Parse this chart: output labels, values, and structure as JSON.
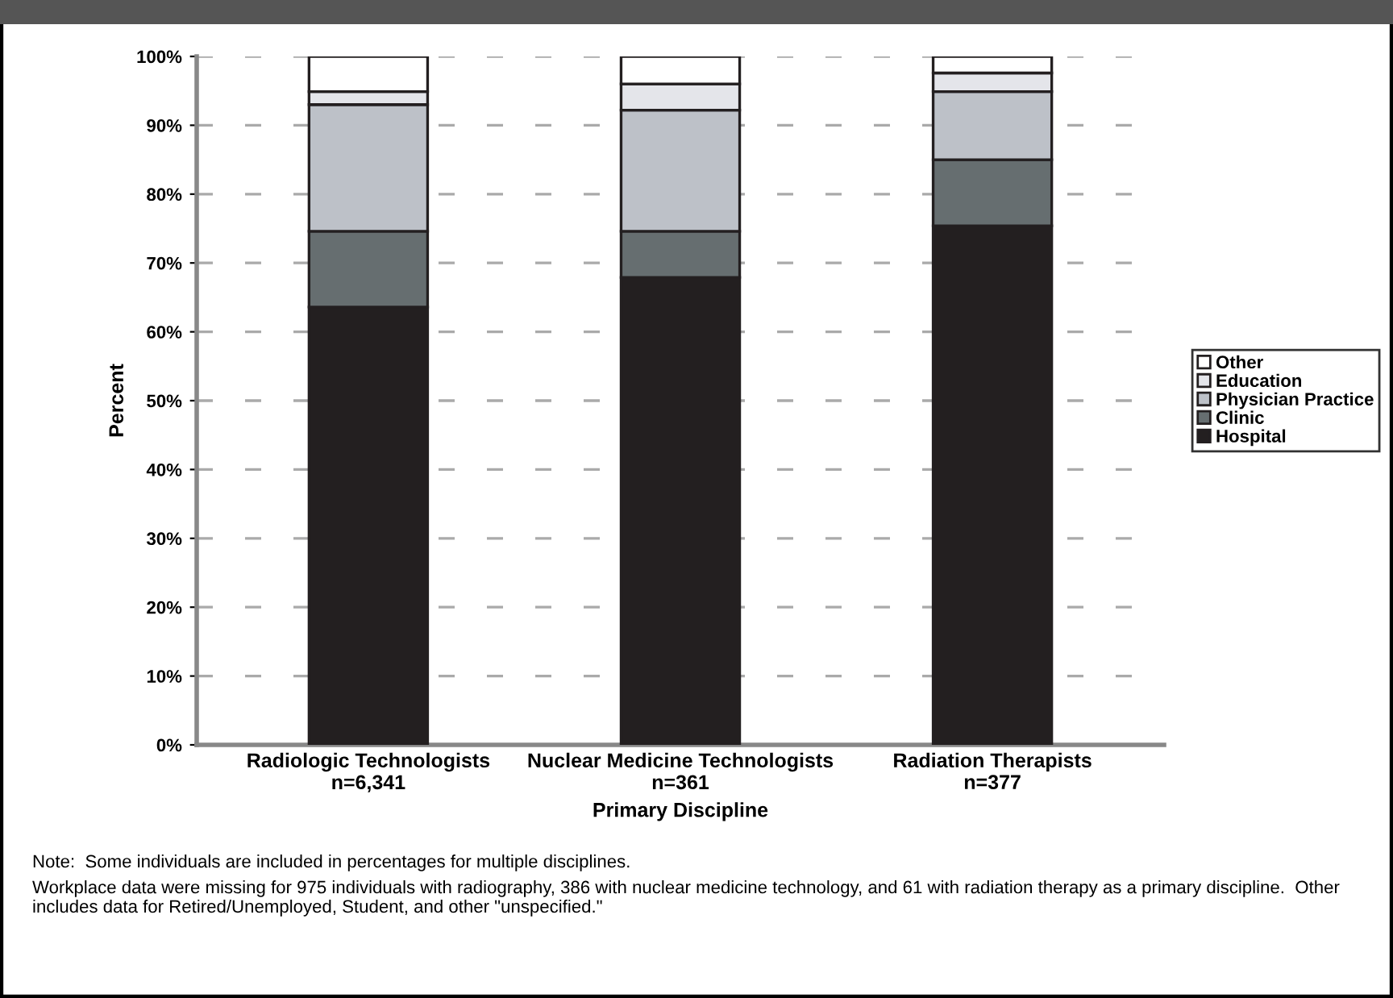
{
  "chart_data": {
    "type": "bar",
    "stacked": true,
    "xlabel": "Primary Discipline",
    "ylabel": "Percent",
    "categories": [
      "Radiologic Technologists\nn=6,341",
      "Nuclear Medicine Technologists\nn=361",
      "Radiation Therapists\nn=377"
    ],
    "series": [
      {
        "name": "Hospital",
        "color": "#231f20",
        "values": [
          63.6,
          67.9,
          75.4
        ]
      },
      {
        "name": "Clinic",
        "color": "#666e70",
        "values": [
          11.0,
          6.7,
          9.6
        ]
      },
      {
        "name": "Physician Practice",
        "color": "#bdc1c8",
        "values": [
          18.4,
          17.6,
          9.9
        ]
      },
      {
        "name": "Education",
        "color": "#e4e5ea",
        "values": [
          1.9,
          3.8,
          2.7
        ]
      },
      {
        "name": "Other",
        "color": "#ffffff",
        "values": [
          5.1,
          4.0,
          2.4
        ]
      }
    ],
    "ylim": [
      0,
      100
    ],
    "yticks": [
      {
        "value": 0,
        "label": "0%"
      },
      {
        "value": 10,
        "label": "10%"
      },
      {
        "value": 20,
        "label": "20%"
      },
      {
        "value": 30,
        "label": "30%"
      },
      {
        "value": 40,
        "label": "40%"
      },
      {
        "value": 50,
        "label": "50%"
      },
      {
        "value": 60,
        "label": "60%"
      },
      {
        "value": 70,
        "label": "70%"
      },
      {
        "value": 80,
        "label": "80%"
      },
      {
        "value": 90,
        "label": "90%"
      },
      {
        "value": 100,
        "label": "100%"
      }
    ],
    "grid": "y",
    "legend": "right",
    "annotations": [
      "Note:  Some individuals are included in percentages for multiple disciplines.",
      "Workplace data were missing for 975 individuals with radiography, 386 with nuclear medicine technology, and 61 with radiation therapy as a primary discipline.  Other includes data for Retired/Unemployed, Student, and other \"unspecified.\""
    ]
  }
}
